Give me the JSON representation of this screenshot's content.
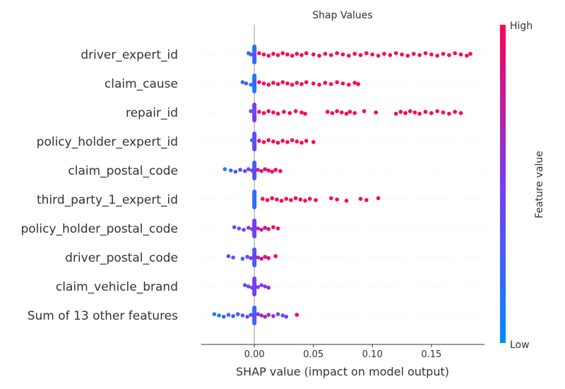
{
  "chart_data": {
    "type": "scatter",
    "subtype": "shap-beeswarm",
    "title": "Shap Values",
    "xlabel": "SHAP value (impact on model output)",
    "xlim": [
      -0.045,
      0.195
    ],
    "xticks": [
      0.0,
      0.05,
      0.1,
      0.15
    ],
    "xtick_labels": [
      "0.00",
      "0.05",
      "0.10",
      "0.15"
    ],
    "grid": false,
    "colorbar": {
      "label": "Feature value",
      "high_label": "High",
      "low_label": "Low",
      "low_color": "#008bfb",
      "mid_color": "#7c3aed",
      "high_color": "#ff0052"
    },
    "features": [
      {
        "name": "driver_expert_id",
        "points": [
          [
            -0.005,
            0.2
          ],
          [
            -0.003,
            0.3
          ],
          [
            0.0,
            0.2
          ],
          [
            0.0,
            0.1
          ],
          [
            0.0,
            0.5
          ],
          [
            0.004,
            1
          ],
          [
            0.008,
            1
          ],
          [
            0.012,
            1
          ],
          [
            0.016,
            1
          ],
          [
            0.02,
            1
          ],
          [
            0.024,
            1
          ],
          [
            0.028,
            1
          ],
          [
            0.032,
            1
          ],
          [
            0.036,
            1
          ],
          [
            0.04,
            1
          ],
          [
            0.044,
            1
          ],
          [
            0.05,
            1
          ],
          [
            0.055,
            1
          ],
          [
            0.06,
            1
          ],
          [
            0.065,
            1
          ],
          [
            0.07,
            1
          ],
          [
            0.075,
            1
          ],
          [
            0.08,
            1
          ],
          [
            0.085,
            1
          ],
          [
            0.09,
            1
          ],
          [
            0.095,
            1
          ],
          [
            0.1,
            1
          ],
          [
            0.105,
            1
          ],
          [
            0.11,
            1
          ],
          [
            0.115,
            1
          ],
          [
            0.12,
            1
          ],
          [
            0.125,
            1
          ],
          [
            0.13,
            1
          ],
          [
            0.135,
            1
          ],
          [
            0.14,
            1
          ],
          [
            0.145,
            1
          ],
          [
            0.15,
            1
          ],
          [
            0.155,
            1
          ],
          [
            0.16,
            1
          ],
          [
            0.165,
            1
          ],
          [
            0.17,
            1
          ],
          [
            0.175,
            1
          ],
          [
            0.18,
            1
          ],
          [
            0.183,
            1
          ]
        ]
      },
      {
        "name": "claim_cause",
        "points": [
          [
            -0.01,
            0.2
          ],
          [
            -0.007,
            0.3
          ],
          [
            -0.003,
            0.1
          ],
          [
            0.0,
            0.5
          ],
          [
            0.0,
            0.3
          ],
          [
            0.004,
            1
          ],
          [
            0.008,
            1
          ],
          [
            0.012,
            1
          ],
          [
            0.016,
            1
          ],
          [
            0.02,
            1
          ],
          [
            0.024,
            1
          ],
          [
            0.028,
            1
          ],
          [
            0.032,
            1
          ],
          [
            0.036,
            1
          ],
          [
            0.04,
            1
          ],
          [
            0.044,
            1
          ],
          [
            0.05,
            1
          ],
          [
            0.055,
            1
          ],
          [
            0.06,
            1
          ],
          [
            0.065,
            1
          ],
          [
            0.07,
            1
          ],
          [
            0.075,
            1
          ],
          [
            0.08,
            1
          ],
          [
            0.085,
            1
          ],
          [
            0.088,
            1
          ]
        ]
      },
      {
        "name": "repair_id",
        "points": [
          [
            -0.003,
            0.3
          ],
          [
            0.0,
            0.1
          ],
          [
            0.0,
            0.5
          ],
          [
            0.004,
            1
          ],
          [
            0.008,
            1
          ],
          [
            0.012,
            1
          ],
          [
            0.016,
            1
          ],
          [
            0.02,
            1
          ],
          [
            0.025,
            1
          ],
          [
            0.03,
            1
          ],
          [
            0.035,
            1
          ],
          [
            0.04,
            1
          ],
          [
            0.043,
            1
          ],
          [
            0.062,
            1
          ],
          [
            0.066,
            1
          ],
          [
            0.07,
            1
          ],
          [
            0.074,
            1
          ],
          [
            0.078,
            1
          ],
          [
            0.081,
            1
          ],
          [
            0.085,
            1
          ],
          [
            0.093,
            1
          ],
          [
            0.103,
            1
          ],
          [
            0.12,
            1
          ],
          [
            0.124,
            1
          ],
          [
            0.128,
            1
          ],
          [
            0.132,
            1
          ],
          [
            0.136,
            1
          ],
          [
            0.14,
            1
          ],
          [
            0.145,
            1
          ],
          [
            0.15,
            1
          ],
          [
            0.155,
            1
          ],
          [
            0.16,
            1
          ],
          [
            0.165,
            1
          ],
          [
            0.17,
            1
          ],
          [
            0.175,
            1
          ]
        ]
      },
      {
        "name": "policy_holder_expert_id",
        "points": [
          [
            -0.002,
            0.2
          ],
          [
            0.0,
            0.1
          ],
          [
            0.0,
            0.4
          ],
          [
            0.004,
            1
          ],
          [
            0.008,
            1
          ],
          [
            0.012,
            1
          ],
          [
            0.016,
            1
          ],
          [
            0.02,
            1
          ],
          [
            0.024,
            1
          ],
          [
            0.028,
            1
          ],
          [
            0.032,
            1
          ],
          [
            0.036,
            1
          ],
          [
            0.04,
            1
          ],
          [
            0.044,
            1
          ],
          [
            0.05,
            1
          ]
        ]
      },
      {
        "name": "claim_postal_code",
        "points": [
          [
            -0.025,
            0.1
          ],
          [
            -0.02,
            0.2
          ],
          [
            -0.016,
            0.3
          ],
          [
            -0.012,
            0.35
          ],
          [
            -0.008,
            0.4
          ],
          [
            -0.005,
            0.45
          ],
          [
            -0.002,
            0.45
          ],
          [
            0.0,
            0.5
          ],
          [
            0.003,
            0.75
          ],
          [
            0.006,
            0.85
          ],
          [
            0.009,
            0.9
          ],
          [
            0.012,
            0.9
          ],
          [
            0.015,
            0.95
          ],
          [
            0.018,
            1
          ],
          [
            0.022,
            1
          ]
        ]
      },
      {
        "name": "third_party_1_expert_id",
        "points": [
          [
            0.0,
            0.1
          ],
          [
            0.0,
            0.15
          ],
          [
            0.0,
            0.2
          ],
          [
            0.007,
            1
          ],
          [
            0.011,
            1
          ],
          [
            0.015,
            1
          ],
          [
            0.019,
            1
          ],
          [
            0.023,
            1
          ],
          [
            0.027,
            1
          ],
          [
            0.031,
            1
          ],
          [
            0.035,
            1
          ],
          [
            0.039,
            1
          ],
          [
            0.043,
            1
          ],
          [
            0.047,
            1
          ],
          [
            0.052,
            1
          ],
          [
            0.065,
            1
          ],
          [
            0.07,
            1
          ],
          [
            0.078,
            1
          ],
          [
            0.09,
            1
          ],
          [
            0.095,
            1
          ],
          [
            0.105,
            1
          ]
        ]
      },
      {
        "name": "policy_holder_postal_code",
        "points": [
          [
            -0.017,
            0.35
          ],
          [
            -0.013,
            0.4
          ],
          [
            -0.009,
            0.45
          ],
          [
            -0.005,
            0.5
          ],
          [
            -0.002,
            0.5
          ],
          [
            0.0,
            0.55
          ],
          [
            0.003,
            0.7
          ],
          [
            0.006,
            0.8
          ],
          [
            0.009,
            0.85
          ],
          [
            0.012,
            0.9
          ],
          [
            0.016,
            0.95
          ],
          [
            0.02,
            1
          ]
        ]
      },
      {
        "name": "driver_postal_code",
        "points": [
          [
            -0.022,
            0.35
          ],
          [
            -0.018,
            0.4
          ],
          [
            -0.01,
            0.3
          ],
          [
            -0.006,
            0.4
          ],
          [
            -0.003,
            0.5
          ],
          [
            0.0,
            0.55
          ],
          [
            0.003,
            0.7
          ],
          [
            0.006,
            0.8
          ],
          [
            0.009,
            0.85
          ],
          [
            0.012,
            0.9
          ],
          [
            0.018,
            1
          ]
        ]
      },
      {
        "name": "claim_vehicle_brand",
        "points": [
          [
            -0.008,
            0.35
          ],
          [
            -0.005,
            0.4
          ],
          [
            -0.002,
            0.45
          ],
          [
            0.0,
            0.5
          ],
          [
            0.003,
            0.5
          ],
          [
            0.006,
            0.45
          ],
          [
            0.009,
            0.55
          ],
          [
            0.012,
            0.6
          ]
        ]
      },
      {
        "name": "Sum of 13 other features",
        "points": [
          [
            -0.034,
            0.05
          ],
          [
            -0.03,
            0.1
          ],
          [
            -0.026,
            0.2
          ],
          [
            -0.022,
            0.25
          ],
          [
            -0.018,
            0.3
          ],
          [
            -0.014,
            0.3
          ],
          [
            -0.01,
            0.35
          ],
          [
            -0.006,
            0.4
          ],
          [
            -0.003,
            0.45
          ],
          [
            0.0,
            0.5
          ],
          [
            0.003,
            0.55
          ],
          [
            0.006,
            0.6
          ],
          [
            0.009,
            0.65
          ],
          [
            0.012,
            0.7
          ],
          [
            0.016,
            0.6
          ],
          [
            0.02,
            0.4
          ],
          [
            0.024,
            0.3
          ],
          [
            0.027,
            0.5
          ],
          [
            0.036,
            1
          ]
        ]
      }
    ]
  }
}
